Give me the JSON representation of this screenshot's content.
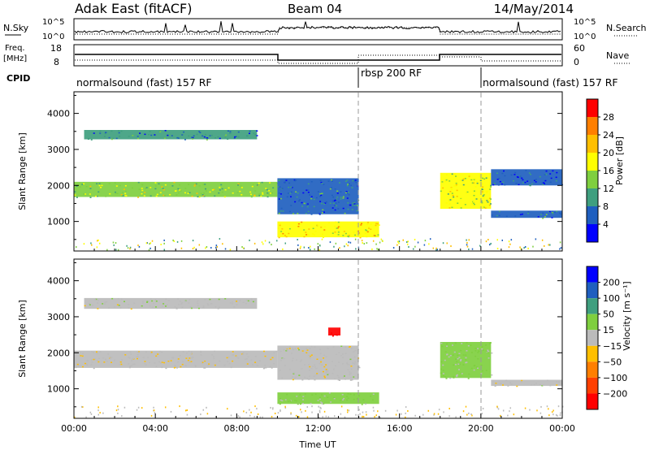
{
  "header": {
    "title": "Adak East (fitACF)",
    "beam": "Beam 04",
    "date": "14/May/2014"
  },
  "panels": {
    "nsky": {
      "label": "N.Sky",
      "right_label": "N.Search",
      "ticks_left": [
        "10^5",
        "10^0"
      ],
      "ticks_right": [
        "10^5",
        "10^0"
      ]
    },
    "freq": {
      "label_line1": "Freq.",
      "label_line2": "[MHz]",
      "ticks_left": [
        "18",
        "8"
      ],
      "right_label": "Nave",
      "ticks_right": [
        "60",
        "0"
      ]
    },
    "cpid": {
      "label": "CPID",
      "segments": [
        "normalsound (fast) 157 RF",
        "rbsp 200 RF",
        "normalsound (fast) 157 RF"
      ]
    }
  },
  "colorbars": {
    "power": {
      "label": "Power [dB]",
      "ticks": [
        "28",
        "24",
        "20",
        "16",
        "12",
        "8",
        "4"
      ],
      "colors": [
        "#ff0000",
        "#ff7f00",
        "#ffbf00",
        "#ffff00",
        "#7fcf3f",
        "#3f9f7f",
        "#1f5fbf",
        "#0000ff"
      ]
    },
    "velocity": {
      "label": "Velocity [m s⁻¹]",
      "ticks": [
        "200",
        "100",
        "50",
        "15",
        "−15",
        "−50",
        "−100",
        "−200"
      ],
      "colors": [
        "#0000ff",
        "#1f5fbf",
        "#3f9f7f",
        "#7fcf3f",
        "#bbbbbb",
        "#ffbf00",
        "#ff7f00",
        "#ff3f00",
        "#ff0000"
      ]
    }
  },
  "chart_data": [
    {
      "type": "heatmap",
      "title": "",
      "ylabel": "Slant Range [km]",
      "xlabel": "",
      "x_unit": "hours UT",
      "xlim": [
        0,
        24
      ],
      "ylim": [
        180,
        4600
      ],
      "yticks": [
        1000,
        2000,
        3000,
        4000
      ],
      "colorbar": "Power [dB]",
      "value_range": [
        0,
        30
      ],
      "regions": [
        {
          "x0": 0.0,
          "x1": 10.0,
          "y0": 1680,
          "y1": 2100,
          "value": 14
        },
        {
          "x0": 0.5,
          "x1": 9.0,
          "y0": 3280,
          "y1": 3540,
          "value": 8
        },
        {
          "x0": 10.0,
          "x1": 14.0,
          "y0": 1200,
          "y1": 2200,
          "value": 7
        },
        {
          "x0": 10.0,
          "x1": 15.0,
          "y0": 560,
          "y1": 1000,
          "value": 18
        },
        {
          "x0": 18.0,
          "x1": 20.5,
          "y0": 1350,
          "y1": 2350,
          "value": 15
        },
        {
          "x0": 20.5,
          "x1": 24.0,
          "y0": 1100,
          "y1": 1300,
          "value": 6
        },
        {
          "x0": 20.5,
          "x1": 24.0,
          "y0": 2000,
          "y1": 2450,
          "value": 5
        }
      ]
    },
    {
      "type": "heatmap",
      "title": "",
      "ylabel": "Slant Range [km]",
      "xlabel": "Time UT",
      "x_unit": "hours UT",
      "xlim": [
        0,
        24
      ],
      "ylim": [
        180,
        4600
      ],
      "yticks": [
        1000,
        2000,
        3000,
        4000
      ],
      "xticks": [
        "00:00",
        "04:00",
        "08:00",
        "12:00",
        "16:00",
        "20:00",
        "00:00"
      ],
      "colorbar": "Velocity [m s⁻¹]",
      "value_range": [
        -200,
        200
      ],
      "regions": [
        {
          "x0": 0.0,
          "x1": 10.0,
          "y0": 1580,
          "y1": 2060,
          "value": -10
        },
        {
          "x0": 0.5,
          "x1": 9.0,
          "y0": 3220,
          "y1": 3520,
          "value": 5
        },
        {
          "x0": 10.0,
          "x1": 14.0,
          "y0": 1250,
          "y1": 2200,
          "value": -5
        },
        {
          "x0": 10.0,
          "x1": 15.0,
          "y0": 580,
          "y1": 900,
          "value": 30
        },
        {
          "x0": 12.5,
          "x1": 13.1,
          "y0": 2480,
          "y1": 2700,
          "value": -200
        },
        {
          "x0": 18.0,
          "x1": 20.5,
          "y0": 1300,
          "y1": 2300,
          "value": 25
        },
        {
          "x0": 20.5,
          "x1": 24.0,
          "y0": 1080,
          "y1": 1250,
          "value": -5
        }
      ]
    }
  ]
}
